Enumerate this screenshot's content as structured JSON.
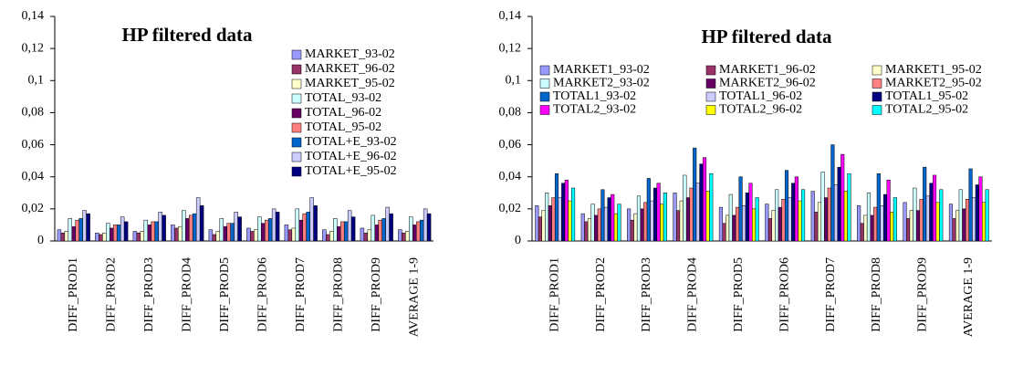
{
  "chart_data": [
    {
      "type": "bar",
      "title": "HP filtered data",
      "categories": [
        "DIFF_PROD1",
        "DIFF_PROD2",
        "DIFF_PROD3",
        "DIFF_PROD4",
        "DIFF_PROD5",
        "DIFF_PROD6",
        "DIFF_PROD7",
        "DIFF_PROD8",
        "DIFF_PROD9",
        "AVERAGE 1-9"
      ],
      "ylim": [
        0,
        0.14
      ],
      "yticks": [
        0,
        {
          "value": 0.02,
          "label": "0,02"
        },
        {
          "value": 0.04,
          "label": "0,04"
        },
        {
          "value": 0.06,
          "label": "0,06"
        },
        {
          "value": 0.08,
          "label": "0,08"
        },
        {
          "value": 0.1,
          "label": "0,1"
        },
        {
          "value": 0.12,
          "label": "0,12"
        },
        {
          "value": 0.14,
          "label": "0,14"
        }
      ],
      "series": [
        {
          "name": "MARKET_93-02",
          "color": "#9999ff",
          "values": [
            0.007,
            0.005,
            0.006,
            0.01,
            0.007,
            0.008,
            0.01,
            0.007,
            0.008,
            0.007
          ]
        },
        {
          "name": "MARKET_96-02",
          "color": "#993366",
          "values": [
            0.005,
            0.004,
            0.005,
            0.008,
            0.004,
            0.006,
            0.007,
            0.004,
            0.005,
            0.005
          ]
        },
        {
          "name": "MARKET_95-02",
          "color": "#ffffcc",
          "values": [
            0.006,
            0.005,
            0.006,
            0.009,
            0.006,
            0.007,
            0.008,
            0.006,
            0.007,
            0.006
          ]
        },
        {
          "name": "TOTAL_93-02",
          "color": "#ccffff",
          "values": [
            0.014,
            0.011,
            0.013,
            0.019,
            0.014,
            0.015,
            0.02,
            0.014,
            0.016,
            0.015
          ]
        },
        {
          "name": "TOTAL_96-02",
          "color": "#660066",
          "values": [
            0.009,
            0.008,
            0.01,
            0.014,
            0.009,
            0.011,
            0.013,
            0.009,
            0.01,
            0.01
          ]
        },
        {
          "name": "TOTAL_95-02",
          "color": "#ff8080",
          "values": [
            0.013,
            0.01,
            0.012,
            0.016,
            0.011,
            0.013,
            0.017,
            0.012,
            0.013,
            0.012
          ]
        },
        {
          "name": "TOTAL+E_93-02",
          "color": "#0066cc",
          "values": [
            0.014,
            0.01,
            0.012,
            0.017,
            0.011,
            0.014,
            0.018,
            0.012,
            0.014,
            0.013
          ]
        },
        {
          "name": "TOTAL+E_96-02",
          "color": "#ccccff",
          "values": [
            0.019,
            0.015,
            0.018,
            0.027,
            0.018,
            0.02,
            0.027,
            0.019,
            0.021,
            0.02
          ]
        },
        {
          "name": "TOTAL+E_95-02",
          "color": "#000080",
          "values": [
            0.017,
            0.012,
            0.016,
            0.022,
            0.015,
            0.018,
            0.022,
            0.015,
            0.017,
            0.017
          ]
        }
      ]
    },
    {
      "type": "bar",
      "title": "HP filtered data",
      "categories": [
        "DIFF_PROD1",
        "DIFF_PROD2",
        "DIFF_PROD3",
        "DIFF_PROD4",
        "DIFF_PROD5",
        "DIFF_PROD6",
        "DIFF_PROD7",
        "DIFF_PROD8",
        "DIFF_PROD9",
        "AVERAGE 1-9"
      ],
      "ylim": [
        0,
        0.14
      ],
      "yticks": [
        0,
        {
          "value": 0.02,
          "label": "0,02"
        },
        {
          "value": 0.04,
          "label": "0,04"
        },
        {
          "value": 0.06,
          "label": "0,06"
        },
        {
          "value": 0.08,
          "label": "0,08"
        },
        {
          "value": 0.1,
          "label": "0,1"
        },
        {
          "value": 0.12,
          "label": "0,12"
        },
        {
          "value": 0.14,
          "label": "0,14"
        }
      ],
      "series": [
        {
          "name": "MARKET1_93-02",
          "color": "#9999ff",
          "values": [
            0.022,
            0.017,
            0.02,
            0.03,
            0.021,
            0.023,
            0.031,
            0.022,
            0.024,
            0.023
          ]
        },
        {
          "name": "MARKET1_96-02",
          "color": "#993366",
          "values": [
            0.015,
            0.012,
            0.013,
            0.019,
            0.011,
            0.014,
            0.018,
            0.011,
            0.014,
            0.014
          ]
        },
        {
          "name": "MARKET1_95-02",
          "color": "#ffffcc",
          "values": [
            0.019,
            0.014,
            0.017,
            0.025,
            0.016,
            0.019,
            0.024,
            0.016,
            0.019,
            0.019
          ]
        },
        {
          "name": "MARKET2_93-02",
          "color": "#ccffff",
          "values": [
            0.03,
            0.023,
            0.028,
            0.041,
            0.029,
            0.032,
            0.043,
            0.03,
            0.033,
            0.032
          ]
        },
        {
          "name": "MARKET2_96-02",
          "color": "#660066",
          "values": [
            0.022,
            0.016,
            0.02,
            0.027,
            0.016,
            0.021,
            0.027,
            0.016,
            0.019,
            0.02
          ]
        },
        {
          "name": "MARKET2_95-02",
          "color": "#ff8080",
          "values": [
            0.027,
            0.02,
            0.024,
            0.033,
            0.021,
            0.026,
            0.033,
            0.021,
            0.026,
            0.026
          ]
        },
        {
          "name": "TOTAL1_93-02",
          "color": "#0066cc",
          "values": [
            0.042,
            0.032,
            0.039,
            0.058,
            0.04,
            0.044,
            0.06,
            0.042,
            0.046,
            0.045
          ]
        },
        {
          "name": "TOTAL1_96-02",
          "color": "#ccccff",
          "values": [
            0.027,
            0.021,
            0.025,
            0.036,
            0.022,
            0.027,
            0.035,
            0.022,
            0.028,
            0.027
          ]
        },
        {
          "name": "TOTAL1_95-02",
          "color": "#000080",
          "values": [
            0.036,
            0.027,
            0.033,
            0.048,
            0.03,
            0.036,
            0.046,
            0.029,
            0.036,
            0.035
          ]
        },
        {
          "name": "TOTAL2_93-02",
          "color": "#ff00ff",
          "values": [
            0.038,
            0.029,
            0.036,
            0.052,
            0.036,
            0.04,
            0.054,
            0.038,
            0.041,
            0.04
          ]
        },
        {
          "name": "TOTAL2_96-02",
          "color": "#ffff00",
          "values": [
            0.025,
            0.017,
            0.023,
            0.031,
            0.02,
            0.025,
            0.031,
            0.018,
            0.024,
            0.024
          ]
        },
        {
          "name": "TOTAL2_95-02",
          "color": "#00ffff",
          "values": [
            0.033,
            0.023,
            0.03,
            0.042,
            0.027,
            0.032,
            0.042,
            0.027,
            0.032,
            0.032
          ]
        }
      ]
    }
  ]
}
